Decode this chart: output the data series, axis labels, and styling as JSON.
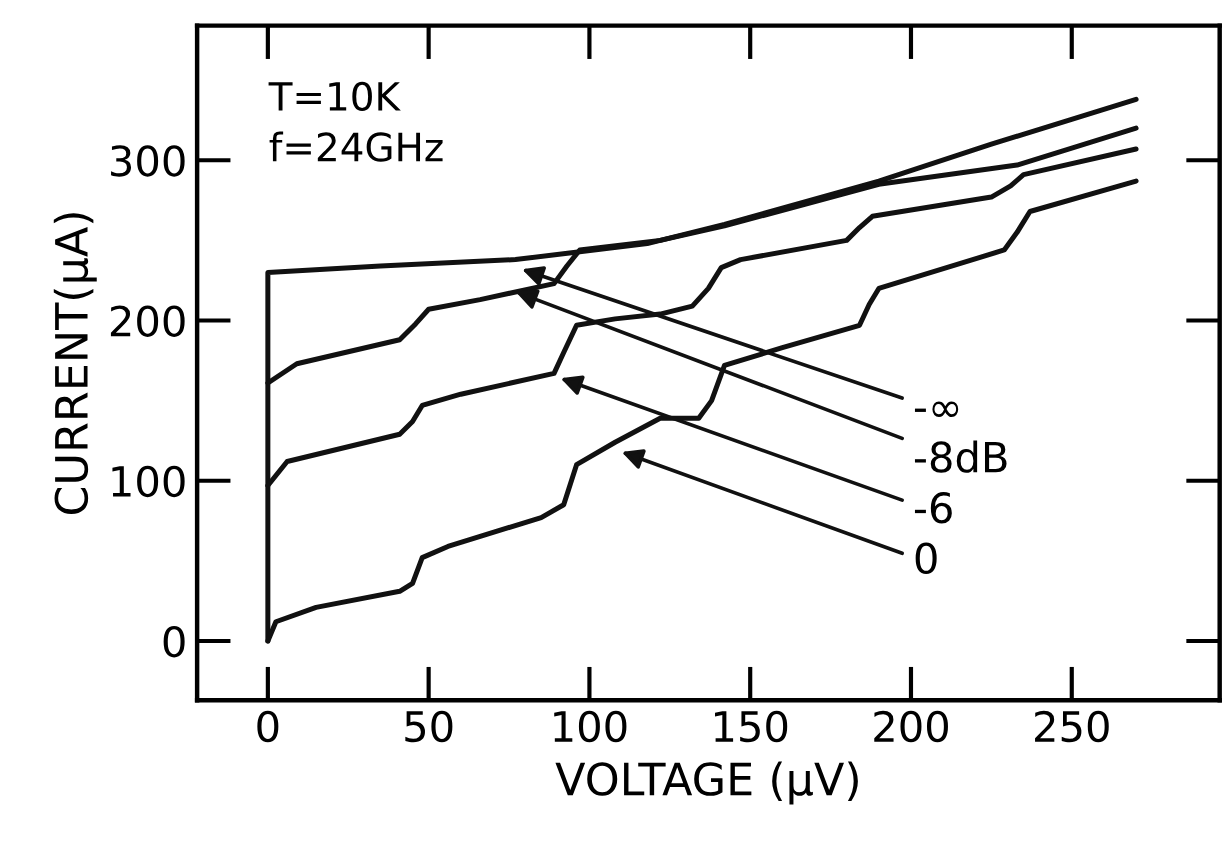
{
  "chart_data": {
    "type": "line",
    "xlabel": "VOLTAGE (µV)",
    "ylabel": "CURRENT(µA)",
    "xlim": [
      -22,
      296
    ],
    "ylim": [
      -37,
      384
    ],
    "xticks": [
      0,
      50,
      100,
      150,
      200,
      250
    ],
    "yticks": [
      0,
      100,
      200,
      300
    ],
    "grid": false,
    "legend": false,
    "marker": "none",
    "line_style": "solid",
    "series": [
      {
        "color": "#111111",
        "x": [
          0,
          0,
          35,
          77,
          118,
          142,
          190,
          225,
          270
        ],
        "values": [
          0,
          230,
          234,
          238,
          248,
          260,
          287,
          310,
          338
        ]
      },
      {
        "color": "#111111",
        "x": [
          0,
          9,
          41,
          46,
          50,
          66,
          89,
          93,
          97,
          122,
          142,
          190,
          233,
          270
        ],
        "values": [
          161,
          173,
          188,
          198,
          207,
          213,
          223,
          234,
          244,
          250,
          259,
          285,
          297,
          320
        ]
      },
      {
        "color": "#111111",
        "x": [
          0,
          6,
          41,
          45,
          48,
          60,
          89,
          92,
          96,
          108,
          122,
          132,
          137,
          141,
          147,
          180,
          184,
          188,
          225,
          231,
          235,
          270
        ],
        "values": [
          97,
          112,
          129,
          137,
          147,
          154,
          167,
          180,
          197,
          201,
          204,
          209,
          220,
          233,
          238,
          250,
          258,
          265,
          277,
          284,
          291,
          307
        ]
      },
      {
        "color": "#111111",
        "x": [
          0,
          2.5,
          15,
          41,
          45,
          48,
          56,
          85,
          92,
          96,
          108,
          122,
          134,
          138,
          142,
          160,
          184,
          187,
          190,
          229,
          233,
          237,
          270
        ],
        "values": [
          0,
          12,
          21,
          31,
          36,
          52,
          59,
          77,
          85,
          110,
          124,
          139,
          139,
          150,
          172,
          183,
          197,
          210,
          220,
          244,
          255,
          268,
          287
        ]
      }
    ],
    "annotations": [
      "T=10K",
      "f=24GHz",
      {
        "text": "-∞",
        "x": 79,
        "y": 232
      },
      {
        "text": "-8dB",
        "x": 77,
        "y": 218
      },
      {
        "text": "-6",
        "x": 91,
        "y": 164
      },
      {
        "text": "0",
        "x": 110,
        "y": 118
      }
    ]
  }
}
